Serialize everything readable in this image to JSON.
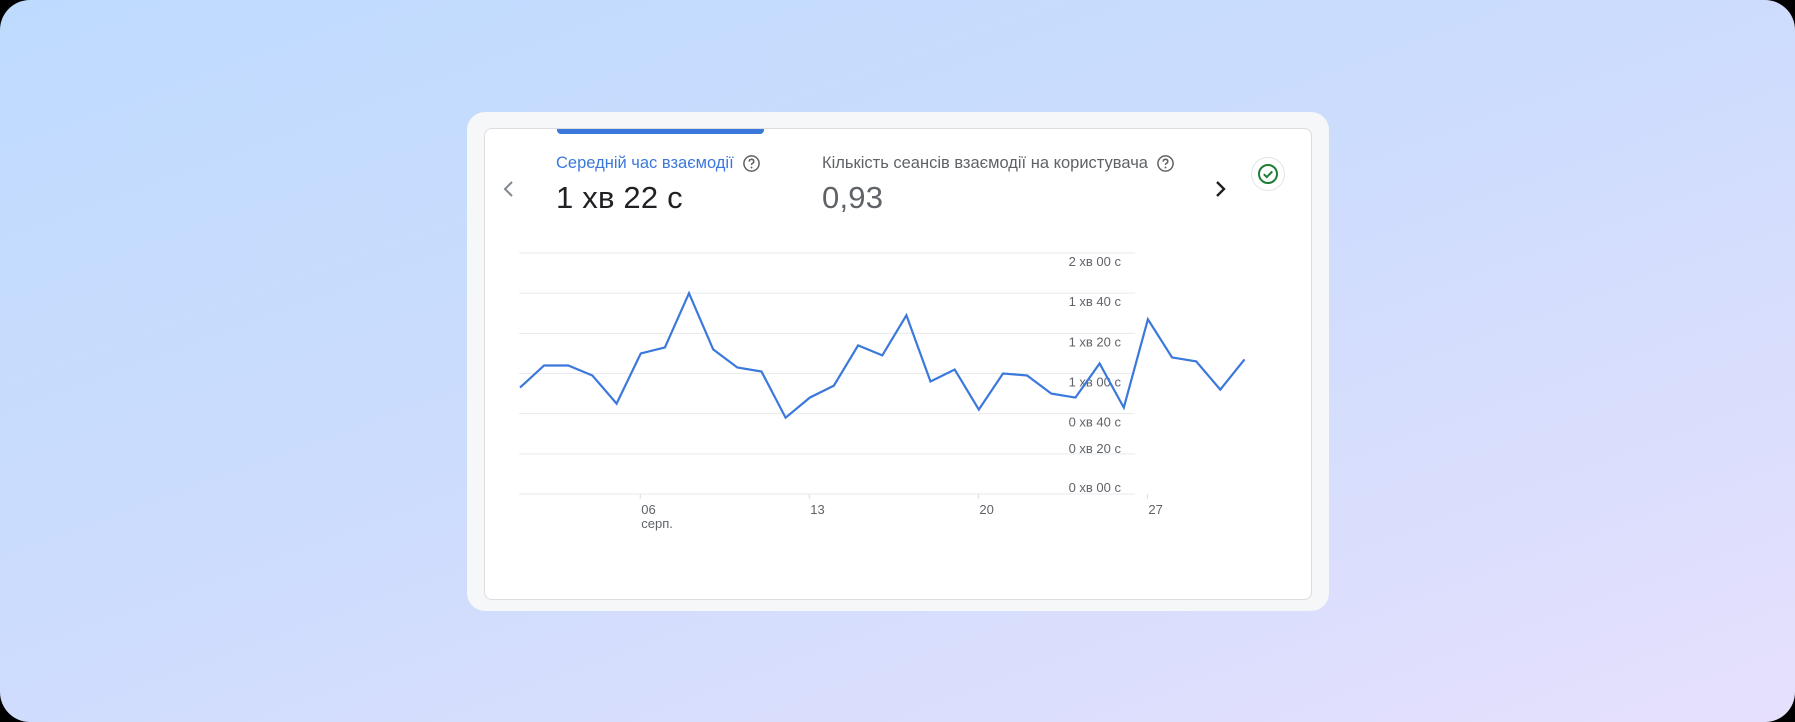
{
  "colors": {
    "accent": "#3b78dc",
    "line": "#3b78dc",
    "label_active": "#3b78dc",
    "label_inactive": "#5f6368",
    "value_active": "#202124",
    "value_inactive": "#5f6368",
    "grid": "#e8eaed",
    "check": "#1e7e34"
  },
  "metrics": [
    {
      "label": "Середній час взаємодії",
      "value": "1 хв 22 с",
      "active": true,
      "help_icon": "help-circle-icon"
    },
    {
      "label": "Кількість сеансів взаємодії на користувача",
      "value": "0,93",
      "active": false,
      "help_icon": "help-circle-icon"
    }
  ],
  "nav": {
    "prev_icon": "chevron-left-icon",
    "next_icon": "chevron-right-icon",
    "status_icon": "check-circle-icon"
  },
  "chart_data": {
    "type": "line",
    "title": "Середній час взаємодії",
    "xlabel": "",
    "ylabel": "",
    "x": [
      "01",
      "02",
      "03",
      "04",
      "05",
      "06",
      "07",
      "08",
      "09",
      "10",
      "11",
      "12",
      "13",
      "14",
      "15",
      "16",
      "17",
      "18",
      "19",
      "20",
      "21",
      "22",
      "23",
      "24",
      "25",
      "26",
      "27",
      "28",
      "29",
      "30",
      "31"
    ],
    "x_tick_labels": [
      {
        "day": "06",
        "sub": "серп."
      },
      {
        "day": "13",
        "sub": ""
      },
      {
        "day": "20",
        "sub": ""
      },
      {
        "day": "27",
        "sub": ""
      }
    ],
    "series": [
      {
        "name": "Середній час взаємодії (с)",
        "values": [
          53,
          64,
          64,
          59,
          45,
          70,
          73,
          100,
          72,
          63,
          61,
          38,
          48,
          54,
          74,
          69,
          89,
          56,
          62,
          42,
          60,
          59,
          50,
          48,
          65,
          43,
          87,
          68,
          66,
          52,
          67
        ]
      }
    ],
    "y_ticks": [
      0,
      20,
      40,
      60,
      80,
      100,
      120
    ],
    "y_tick_labels": [
      "0 хв 00 с",
      "0 хв 20 с",
      "0 хв 40 с",
      "1 хв 00 с",
      "1 хв 20 с",
      "1 хв 40 с",
      "2 хв 00 с"
    ],
    "ylim": [
      0,
      120
    ],
    "grid": true,
    "legend": "none"
  }
}
